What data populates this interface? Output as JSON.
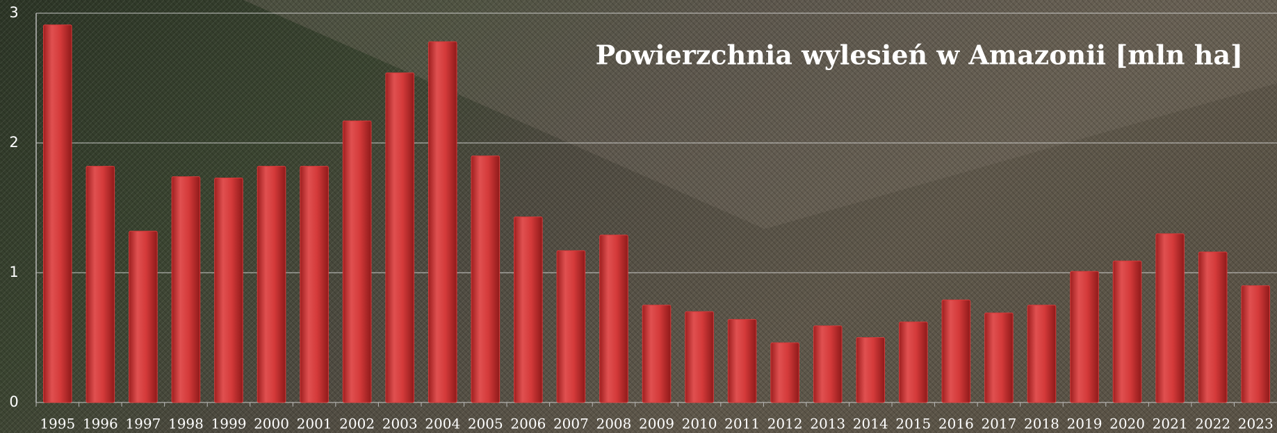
{
  "chart_data": {
    "type": "bar",
    "title": "Powierzchnia wylesień w Amazonii [mln ha]",
    "categories": [
      "1995",
      "1996",
      "1997",
      "1998",
      "1999",
      "2000",
      "2001",
      "2002",
      "2003",
      "2004",
      "2005",
      "2006",
      "2007",
      "2008",
      "2009",
      "2010",
      "2011",
      "2012",
      "2013",
      "2014",
      "2015",
      "2016",
      "2017",
      "2018",
      "2019",
      "2020",
      "2021",
      "2022",
      "2023"
    ],
    "values": [
      2.91,
      1.82,
      1.32,
      1.74,
      1.73,
      1.82,
      1.82,
      2.17,
      2.54,
      2.78,
      1.9,
      1.43,
      1.17,
      1.29,
      0.75,
      0.7,
      0.64,
      0.46,
      0.59,
      0.5,
      0.62,
      0.79,
      0.69,
      0.75,
      1.01,
      1.09,
      1.3,
      1.16,
      0.9
    ],
    "color": "#d63a3a",
    "ylim": [
      0,
      3
    ],
    "yticks": [
      0,
      1,
      2,
      3
    ],
    "grid": true
  }
}
